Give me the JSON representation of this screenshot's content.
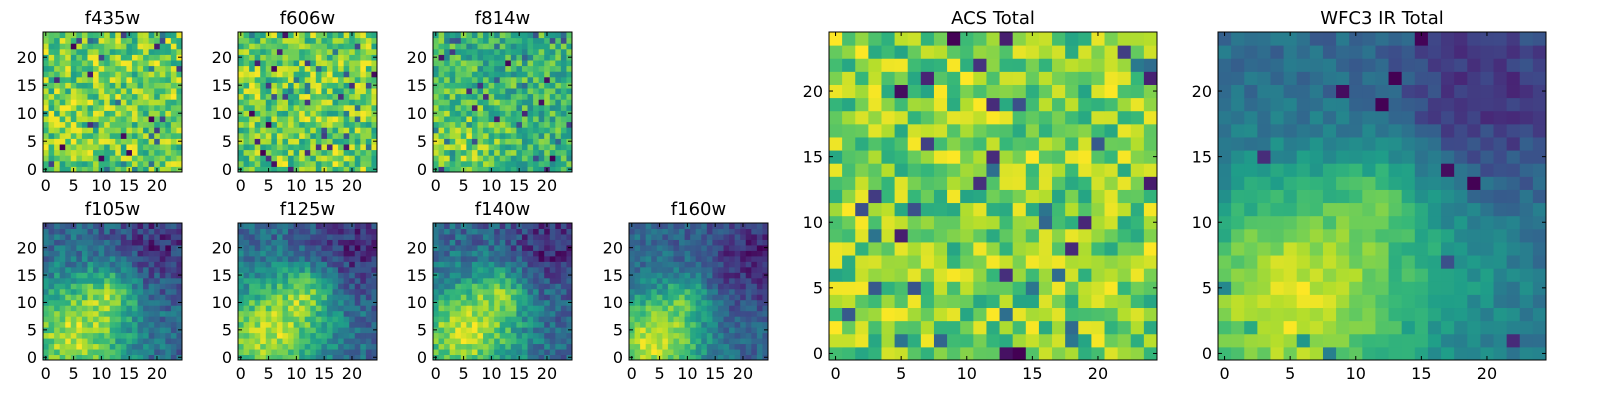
{
  "chart_data": [
    {
      "type": "heatmap",
      "title": "f435w",
      "x_ticks": [
        0,
        5,
        10,
        15,
        20
      ],
      "y_ticks": [
        0,
        5,
        10,
        15,
        20
      ],
      "xlim": [
        -0.5,
        24.5
      ],
      "ylim": [
        -0.5,
        24.5
      ],
      "grid_size": 25,
      "colormap": "viridis",
      "pattern": "noise",
      "seed": 11,
      "grid": false
    },
    {
      "type": "heatmap",
      "title": "f606w",
      "x_ticks": [
        0,
        5,
        10,
        15,
        20
      ],
      "y_ticks": [
        0,
        5,
        10,
        15,
        20
      ],
      "xlim": [
        -0.5,
        24.5
      ],
      "ylim": [
        -0.5,
        24.5
      ],
      "grid_size": 25,
      "colormap": "viridis",
      "pattern": "noise",
      "seed": 23,
      "grid": false
    },
    {
      "type": "heatmap",
      "title": "f814w",
      "x_ticks": [
        0,
        5,
        10,
        15,
        20
      ],
      "y_ticks": [
        0,
        5,
        10,
        15,
        20
      ],
      "xlim": [
        -0.5,
        24.5
      ],
      "ylim": [
        -0.5,
        24.5
      ],
      "grid_size": 25,
      "colormap": "viridis",
      "pattern": "noise-grad",
      "seed": 37,
      "grid": false
    },
    {
      "type": "heatmap",
      "title": "f105w",
      "x_ticks": [
        0,
        5,
        10,
        15,
        20
      ],
      "y_ticks": [
        0,
        5,
        10,
        15,
        20
      ],
      "xlim": [
        -0.5,
        24.5
      ],
      "ylim": [
        -0.5,
        24.5
      ],
      "grid_size": 25,
      "colormap": "viridis",
      "pattern": "ir",
      "seed": 41,
      "grid": false
    },
    {
      "type": "heatmap",
      "title": "f125w",
      "x_ticks": [
        0,
        5,
        10,
        15,
        20
      ],
      "y_ticks": [
        0,
        5,
        10,
        15,
        20
      ],
      "xlim": [
        -0.5,
        24.5
      ],
      "ylim": [
        -0.5,
        24.5
      ],
      "grid_size": 25,
      "colormap": "viridis",
      "pattern": "ir",
      "seed": 53,
      "grid": false
    },
    {
      "type": "heatmap",
      "title": "f140w",
      "x_ticks": [
        0,
        5,
        10,
        15,
        20
      ],
      "y_ticks": [
        0,
        5,
        10,
        15,
        20
      ],
      "xlim": [
        -0.5,
        24.5
      ],
      "ylim": [
        -0.5,
        24.5
      ],
      "grid_size": 25,
      "colormap": "viridis",
      "pattern": "ir",
      "seed": 67,
      "grid": false
    },
    {
      "type": "heatmap",
      "title": "f160w",
      "x_ticks": [
        0,
        5,
        10,
        15,
        20
      ],
      "y_ticks": [
        0,
        5,
        10,
        15,
        20
      ],
      "xlim": [
        -0.5,
        24.5
      ],
      "ylim": [
        -0.5,
        24.5
      ],
      "grid_size": 25,
      "colormap": "viridis",
      "pattern": "ir-strong",
      "seed": 79,
      "grid": false
    },
    {
      "type": "heatmap",
      "title": "ACS Total",
      "x_ticks": [
        0,
        5,
        10,
        15,
        20
      ],
      "y_ticks": [
        0,
        5,
        10,
        15,
        20
      ],
      "xlim": [
        -0.5,
        24.5
      ],
      "ylim": [
        -0.5,
        24.5
      ],
      "grid_size": 25,
      "colormap": "viridis",
      "pattern": "acs",
      "seed": 97,
      "grid": false
    },
    {
      "type": "heatmap",
      "title": "WFC3 IR Total",
      "x_ticks": [
        0,
        5,
        10,
        15,
        20
      ],
      "y_ticks": [
        0,
        5,
        10,
        15,
        20
      ],
      "xlim": [
        -0.5,
        24.5
      ],
      "ylim": [
        -0.5,
        24.5
      ],
      "grid_size": 25,
      "colormap": "viridis",
      "pattern": "ir-total",
      "seed": 113,
      "grid": false
    }
  ]
}
